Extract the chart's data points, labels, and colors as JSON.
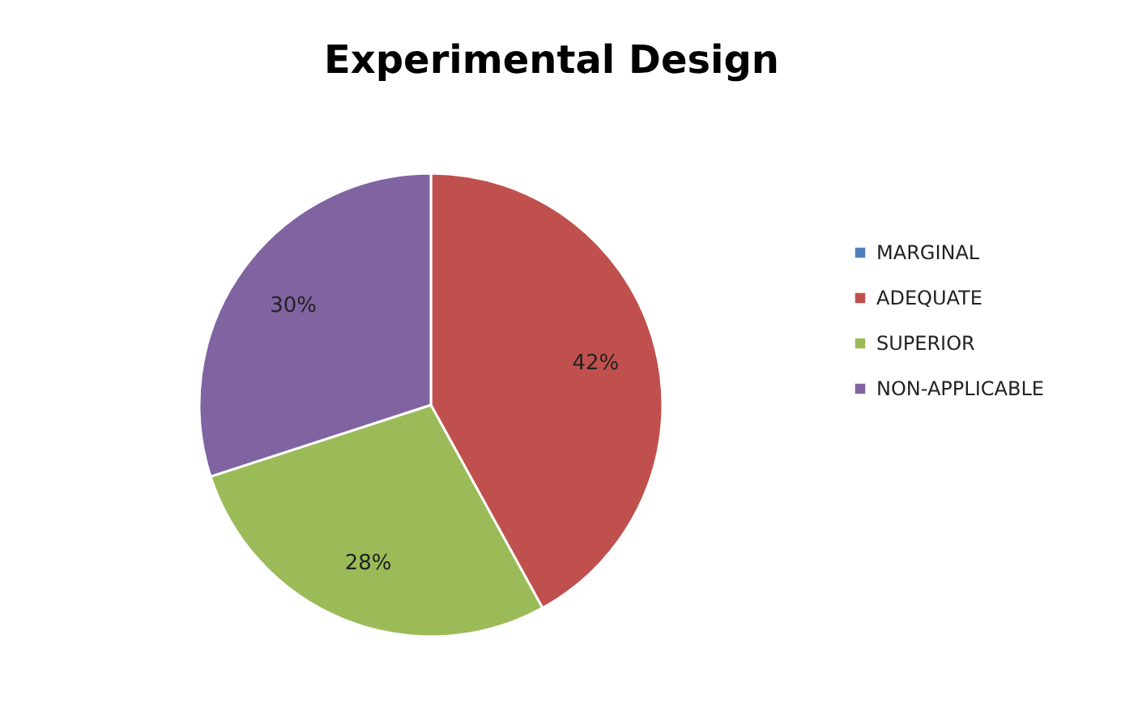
{
  "chart_data": {
    "type": "pie",
    "title": "Experimental Design",
    "categories": [
      "MARGINAL",
      "ADEQUATE",
      "SUPERIOR",
      "NON-APPLICABLE"
    ],
    "values": [
      0,
      42,
      28,
      30
    ],
    "colors": [
      "#4f81bd",
      "#c0504d",
      "#9bbb59",
      "#8064a2"
    ],
    "value_labels": [
      null,
      "42%",
      "28%",
      "30%"
    ],
    "legend": "right"
  }
}
